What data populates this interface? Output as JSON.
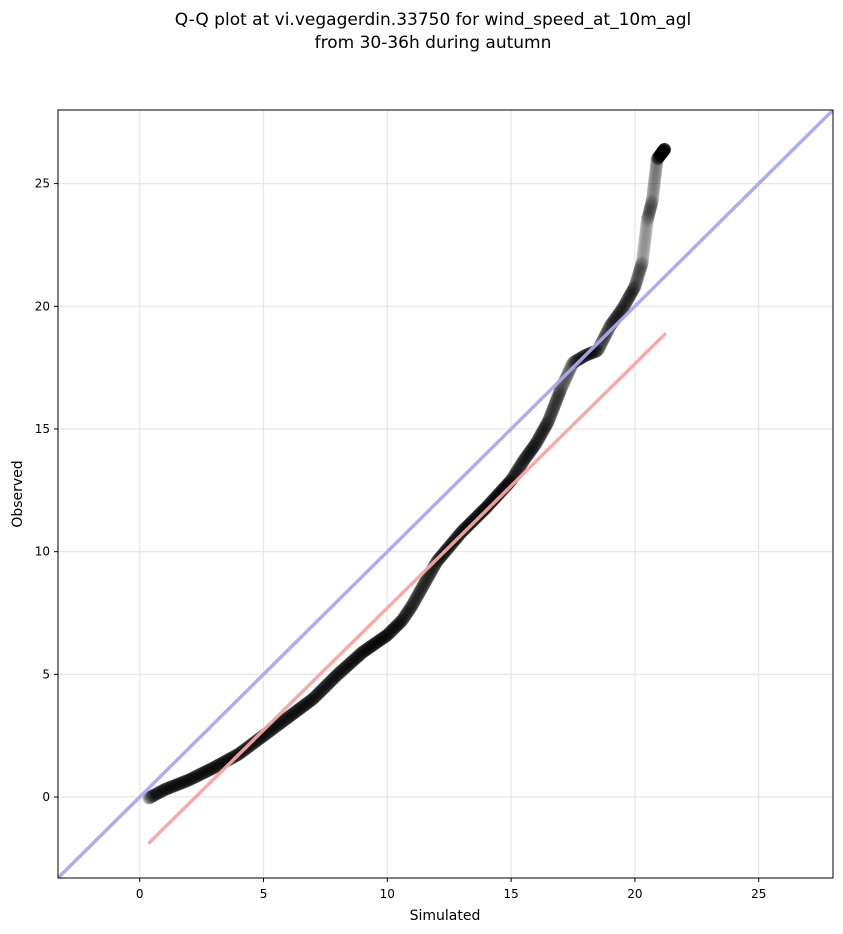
{
  "chart_data": {
    "type": "scatter",
    "title": [
      "Q-Q plot at vi.vegagerdin.33750 for wind_speed_at_10m_agl",
      "from 30-36h during autumn"
    ],
    "xlabel": "Simulated",
    "ylabel": "Observed",
    "xlim": [
      -3.3,
      28.0
    ],
    "ylim": [
      -3.3,
      28.0
    ],
    "xticks": [
      0,
      5,
      10,
      15,
      20,
      25
    ],
    "yticks": [
      0,
      5,
      10,
      15,
      20,
      25
    ],
    "grid": true,
    "colors": {
      "points": "#000000",
      "identity_line": "#aaaaee",
      "fit_line": "#f4a6a6"
    },
    "identity_line": {
      "x": [
        -3.3,
        28.0
      ],
      "y": [
        -3.3,
        28.0
      ]
    },
    "fit_line": {
      "x": [
        0.35,
        21.25
      ],
      "y": [
        -1.9,
        18.9
      ]
    },
    "quantile_curve": {
      "x": [
        0.35,
        1.0,
        2.0,
        3.0,
        4.0,
        5.0,
        6.0,
        7.0,
        8.0,
        9.0,
        10.0,
        10.6,
        11.0,
        11.5,
        12.0,
        13.0,
        14.0,
        15.0,
        15.5,
        16.0,
        16.5,
        17.0,
        17.5,
        18.0,
        18.5,
        19.0,
        19.5,
        20.0,
        20.3,
        20.5,
        20.7,
        20.9,
        21.2
      ],
      "y": [
        -0.05,
        0.3,
        0.7,
        1.2,
        1.75,
        2.5,
        3.25,
        4.0,
        5.0,
        5.9,
        6.6,
        7.2,
        7.8,
        8.7,
        9.6,
        10.8,
        11.8,
        12.9,
        13.7,
        14.4,
        15.3,
        16.6,
        17.7,
        18.0,
        18.2,
        19.2,
        19.9,
        20.8,
        21.8,
        23.5,
        24.3,
        26.0,
        26.4
      ]
    },
    "point_count": 1400
  }
}
